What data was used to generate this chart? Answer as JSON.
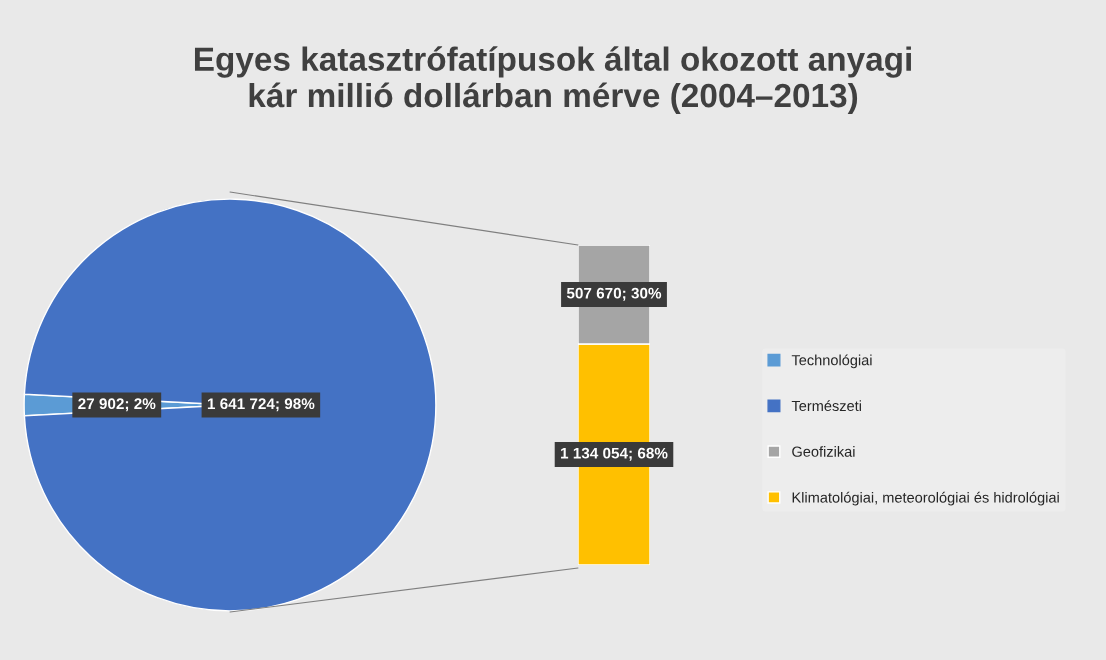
{
  "chart_data": [
    {
      "type": "pie",
      "title": "Egyes katasztrófatípusok által okozott anyagi\nkár millió dollárban mérve (2004–2013)",
      "categories": [
        "Technológiai",
        "Természeti"
      ],
      "values": [
        27902,
        1641724
      ],
      "colors": [
        "#5b9bd5",
        "#4472c4"
      ],
      "value_labels": [
        "27 902; 2%",
        "1 641 724; 98%"
      ],
      "legend": "right"
    },
    {
      "type": "bar",
      "stacked": true,
      "categories": [
        null
      ],
      "series": [
        {
          "name": "Klimatológiai, meteorológiai és hidrológiai",
          "color": "#ffc000",
          "values": [
            1134054
          ],
          "value_labels": [
            "1 134 054; 68%"
          ]
        },
        {
          "name": "Geofizikai",
          "color": "#a5a5a5",
          "values": [
            507670
          ],
          "value_labels": [
            "507 670; 30%"
          ]
        }
      ],
      "legend": "right"
    }
  ]
}
